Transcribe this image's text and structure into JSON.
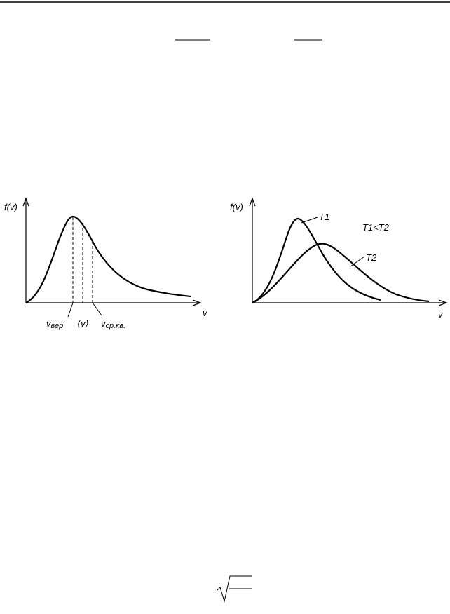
{
  "left_diagram": {
    "y_label": "f(v)",
    "x_label": "v",
    "markers": [
      {
        "main": "v",
        "sub": "вер"
      },
      {
        "main": "⟨v⟩"
      },
      {
        "main": "v",
        "sub": "ср.кв."
      }
    ]
  },
  "right_diagram": {
    "y_label": "f(v)",
    "x_label": "v",
    "curve_labels": [
      "T1",
      "T2"
    ],
    "relation": "T1<T2"
  }
}
